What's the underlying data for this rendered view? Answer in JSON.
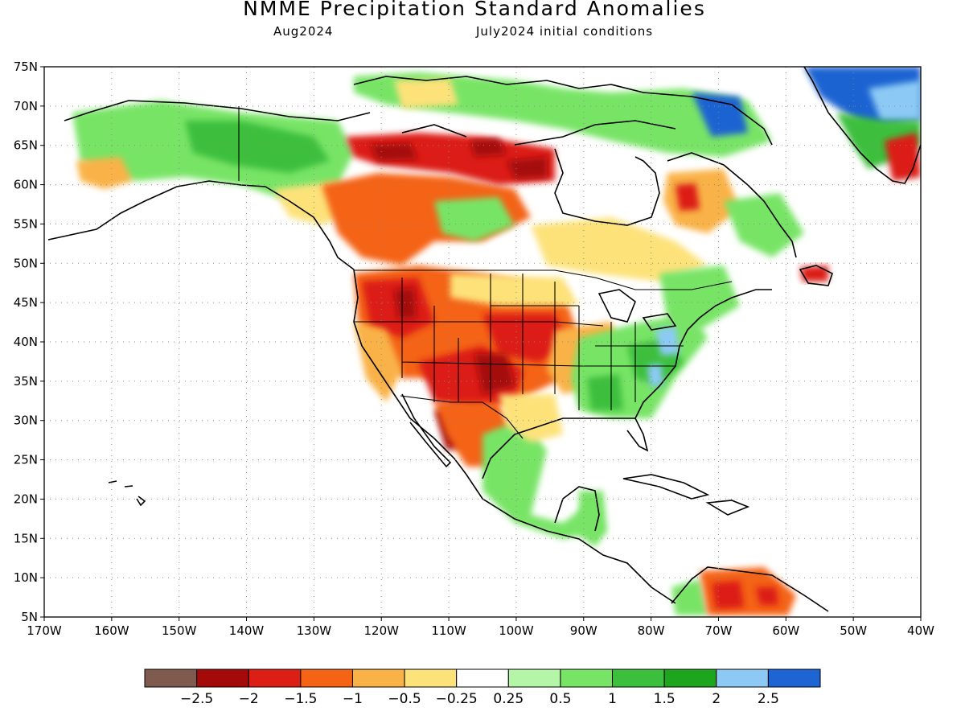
{
  "title": "NMME Precipitation Standard Anomalies",
  "subtitle_left": "Aug2024",
  "subtitle_right": "July2024 initial conditions",
  "map": {
    "lon_range": [
      -170,
      -40
    ],
    "lat_range": [
      5,
      75
    ],
    "lat_ticks": [
      "75N",
      "70N",
      "65N",
      "60N",
      "55N",
      "50N",
      "45N",
      "40N",
      "35N",
      "30N",
      "25N",
      "20N",
      "15N",
      "10N",
      "5N"
    ],
    "lon_ticks": [
      "170W",
      "160W",
      "150W",
      "140W",
      "130W",
      "120W",
      "110W",
      "100W",
      "90W",
      "80W",
      "70W",
      "60W",
      "50W",
      "40W"
    ],
    "ocean_color": "#ffffff",
    "gridlines": "dotted"
  },
  "colorbar": {
    "colors": [
      "#7f5a4f",
      "#a50a0a",
      "#dc1e14",
      "#f46414",
      "#f9b246",
      "#fde27a",
      "#ffffff",
      "#b4f5a8",
      "#78e466",
      "#3cbf3c",
      "#1ea51e",
      "#8ccaf5",
      "#1e64d2"
    ],
    "labels": [
      "−2.5",
      "−2",
      "−1.5",
      "−1",
      "−0.5",
      "−0.25",
      "0.25",
      "0.5",
      "1",
      "1.5",
      "2",
      "2.5"
    ]
  },
  "anomaly_regions": [
    {
      "name": "alaska-north",
      "category": "green",
      "color": "#3cbf3c"
    },
    {
      "name": "alaska-south",
      "category": "orange",
      "color": "#f9b246"
    },
    {
      "name": "canada-northwest",
      "category": "red",
      "color": "#dc1e14"
    },
    {
      "name": "western-us",
      "category": "red",
      "color": "#dc1e14"
    },
    {
      "name": "southwest-us",
      "category": "dark-red",
      "color": "#a50a0a"
    },
    {
      "name": "southeast-us",
      "category": "green",
      "color": "#3cbf3c"
    },
    {
      "name": "mexico-south",
      "category": "green",
      "color": "#78e466"
    },
    {
      "name": "venezuela",
      "category": "red",
      "color": "#dc1e14"
    },
    {
      "name": "greenland-east",
      "category": "blue",
      "color": "#1e64d2"
    }
  ]
}
